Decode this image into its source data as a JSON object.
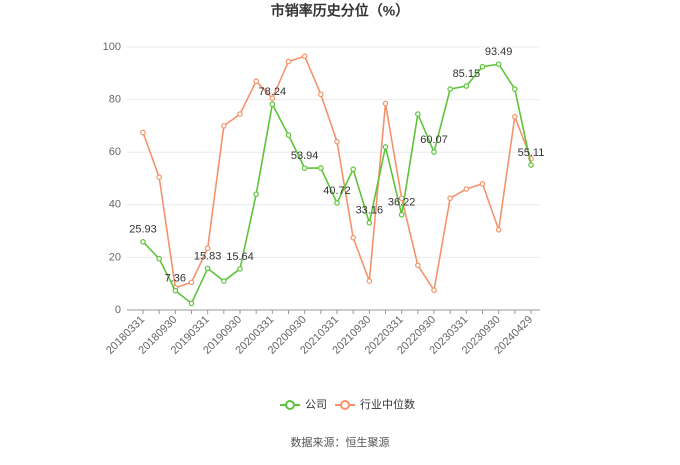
{
  "chart_data": {
    "type": "line",
    "title": "市销率历史分位（%）",
    "categories": [
      "20180331",
      null,
      "20180930",
      null,
      "20190331",
      null,
      "20190930",
      null,
      "20200331",
      null,
      "20200930",
      null,
      "20210331",
      null,
      "20210930",
      null,
      "20220331",
      null,
      "20220930",
      null,
      "20230331",
      null,
      "20230930",
      null,
      "20240429"
    ],
    "series": [
      {
        "name": "公司",
        "color": "#5ec43a",
        "values": [
          25.93,
          19.5,
          7.36,
          2.5,
          15.83,
          11,
          15.64,
          44,
          78.24,
          66.5,
          53.94,
          54,
          40.72,
          53.5,
          33.16,
          62,
          36.22,
          74.5,
          60.07,
          84,
          85.15,
          92.5,
          93.49,
          84,
          55.11
        ],
        "value_labels": [
          "25.93",
          null,
          "7.36",
          null,
          "15.83",
          null,
          "15.64",
          null,
          "78.24",
          null,
          "53.94",
          null,
          "40.72",
          null,
          "33.16",
          null,
          "36.22",
          null,
          "60.07",
          null,
          "85.15",
          null,
          "93.49",
          null,
          "55.11"
        ]
      },
      {
        "name": "行业中位数",
        "color": "#f4936b",
        "values": [
          67.5,
          50.5,
          8.5,
          10.5,
          23.5,
          70,
          74.5,
          87,
          80.5,
          94.5,
          96.5,
          82,
          64,
          27.5,
          11,
          78.5,
          42.5,
          17,
          7.5,
          42.5,
          46,
          48,
          30.5,
          73.5,
          57.5
        ]
      }
    ],
    "ylim": [
      0,
      100
    ],
    "yticks": [
      0,
      20,
      40,
      60,
      80,
      100
    ],
    "grid": true,
    "source": "数据来源：恒生聚源"
  }
}
